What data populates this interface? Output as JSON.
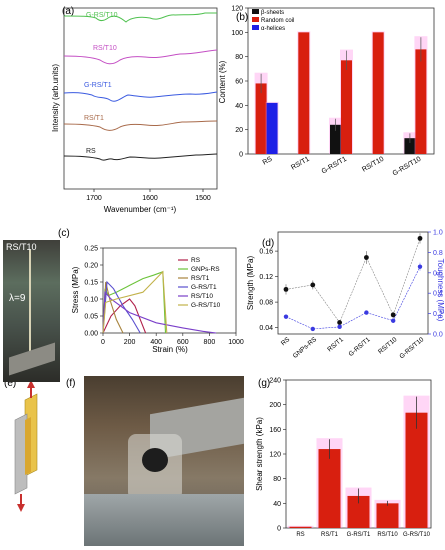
{
  "panel_labels": {
    "a": "(a)",
    "b": "(b)",
    "c": "(c)",
    "d": "(d)",
    "e": "(e)",
    "f": "(f)",
    "g": "(g)"
  },
  "photo_c": {
    "sample_label": "RS/T10",
    "lambda_label": "λ=9"
  },
  "colors": {
    "bar_black": "#111111",
    "bar_red": "#d81f0f",
    "bar_blue": "#1f1fe6",
    "bar_err": "#ff8ae6",
    "rs": "#b0204a",
    "gnps": "#6cc33a",
    "rst1": "#a8843e",
    "grst1": "#5a4fcf",
    "rst10": "#7a3fc9",
    "grst10": "#c2b24a",
    "strength": "#111111",
    "toughness": "#3a3ae0"
  },
  "chart_data": [
    {
      "panel": "a",
      "type": "line",
      "ylabel": "Intensity (arb.units)",
      "xlabel": "Wavenumber (cm⁻¹)",
      "x_ticks": [
        "1700",
        "1600",
        "1500"
      ],
      "series": [
        {
          "name": "G-RS/T10",
          "color": "#4fc14f"
        },
        {
          "name": "RS/T10",
          "color": "#c44fc4"
        },
        {
          "name": "G-RS/T1",
          "color": "#3a5ae0"
        },
        {
          "name": "RS/T1",
          "color": "#a86a4a"
        },
        {
          "name": "RS",
          "color": "#222222"
        }
      ]
    },
    {
      "panel": "b",
      "type": "bar",
      "ylabel": "Content (%)",
      "ylim": [
        0,
        120
      ],
      "y_ticks": [
        "0",
        "20",
        "40",
        "60",
        "80",
        "100",
        "120"
      ],
      "categories": [
        "RS",
        "RS/T1",
        "G-RS/T1",
        "RS/T10",
        "G-RS/T10"
      ],
      "legend": [
        "β-sheets",
        "Random coil",
        "α-helices"
      ],
      "series": [
        {
          "name": "β-sheets",
          "values": [
            null,
            null,
            24,
            null,
            13
          ],
          "errors": [
            0,
            0,
            5,
            0,
            4
          ]
        },
        {
          "name": "Random coil",
          "values": [
            58,
            100,
            77,
            100,
            86
          ],
          "errors": [
            8,
            0,
            8,
            0,
            10
          ]
        },
        {
          "name": "α-helices",
          "values": [
            42,
            null,
            null,
            null,
            null
          ],
          "errors": [
            0,
            0,
            0,
            0,
            0
          ]
        }
      ]
    },
    {
      "panel": "c",
      "type": "line",
      "xlabel": "Strain (%)",
      "ylabel": "Stress (MPa)",
      "xlim": [
        0,
        1000
      ],
      "ylim": [
        0,
        0.25
      ],
      "x_ticks": [
        "0",
        "200",
        "400",
        "600",
        "800",
        "1000"
      ],
      "y_ticks": [
        "0.00",
        "0.05",
        "0.10",
        "0.15",
        "0.20",
        "0.25"
      ],
      "legend": [
        "RS",
        "GNPs-RS",
        "RS/T1",
        "G-RS/T1",
        "RS/T10",
        "G-RS/T10"
      ],
      "series": [
        {
          "name": "RS",
          "x": [
            0,
            60,
            130,
            200,
            240,
            280,
            320
          ],
          "y": [
            0,
            0.05,
            0.08,
            0.1,
            0.08,
            0.04,
            0
          ]
        },
        {
          "name": "GNPs-RS",
          "x": [
            0,
            15,
            40,
            100,
            200,
            300,
            380,
            450,
            470
          ],
          "y": [
            0,
            0.13,
            0.11,
            0.12,
            0.14,
            0.16,
            0.17,
            0.18,
            0.0
          ]
        },
        {
          "name": "RS/T1",
          "x": [
            0,
            20,
            50,
            100,
            150
          ],
          "y": [
            0,
            0.15,
            0.1,
            0.04,
            0
          ]
        },
        {
          "name": "G-RS/T1",
          "x": [
            0,
            30,
            80,
            150,
            220,
            280
          ],
          "y": [
            0,
            0.15,
            0.13,
            0.08,
            0.04,
            0
          ]
        },
        {
          "name": "RS/T10",
          "x": [
            0,
            15,
            60,
            200,
            400,
            600,
            750,
            850
          ],
          "y": [
            0,
            0.12,
            0.1,
            0.06,
            0.03,
            0.015,
            0.005,
            0
          ]
        },
        {
          "name": "G-RS/T10",
          "x": [
            0,
            20,
            100,
            300,
            450,
            480
          ],
          "y": [
            0,
            0.09,
            0.1,
            0.12,
            0.18,
            0.0
          ]
        }
      ]
    },
    {
      "panel": "d",
      "type": "scatter",
      "ylabel": "Strength (MPa)",
      "y2label": "Toughness (MPa)",
      "ylim": [
        0.03,
        0.19
      ],
      "y2lim": [
        0,
        1.0
      ],
      "y_ticks": [
        "0.04",
        "0.08",
        "0.12",
        "0.16"
      ],
      "y2_ticks": [
        "0.0",
        "0.2",
        "0.4",
        "0.6",
        "0.8",
        "1.0"
      ],
      "categories": [
        "RS",
        "GNPs-RS",
        "RS/T1",
        "G-RS/T1",
        "RS/T10",
        "G-RS/T10"
      ],
      "series": [
        {
          "name": "Strength",
          "values": [
            0.1,
            0.107,
            0.048,
            0.15,
            0.06,
            0.18
          ],
          "errors": [
            0.008,
            0.007,
            0.004,
            0.01,
            0.005,
            0.008
          ]
        },
        {
          "name": "Toughness",
          "values": [
            0.17,
            0.05,
            0.07,
            0.21,
            0.13,
            0.66
          ],
          "errors": [
            0.02,
            0.01,
            0.01,
            0.02,
            0.02,
            0.04
          ]
        }
      ]
    },
    {
      "panel": "g",
      "type": "bar",
      "ylabel": "Shear strength (kPa)",
      "ylim": [
        0,
        240
      ],
      "y_ticks": [
        "0",
        "40",
        "80",
        "120",
        "160",
        "200",
        "240"
      ],
      "categories": [
        "RS",
        "RS/T1",
        "G-RS/T1",
        "RS/T10",
        "G-RS/T10"
      ],
      "values": [
        2,
        128,
        52,
        40,
        187
      ],
      "errors": [
        0,
        16,
        12,
        4,
        26
      ]
    }
  ]
}
